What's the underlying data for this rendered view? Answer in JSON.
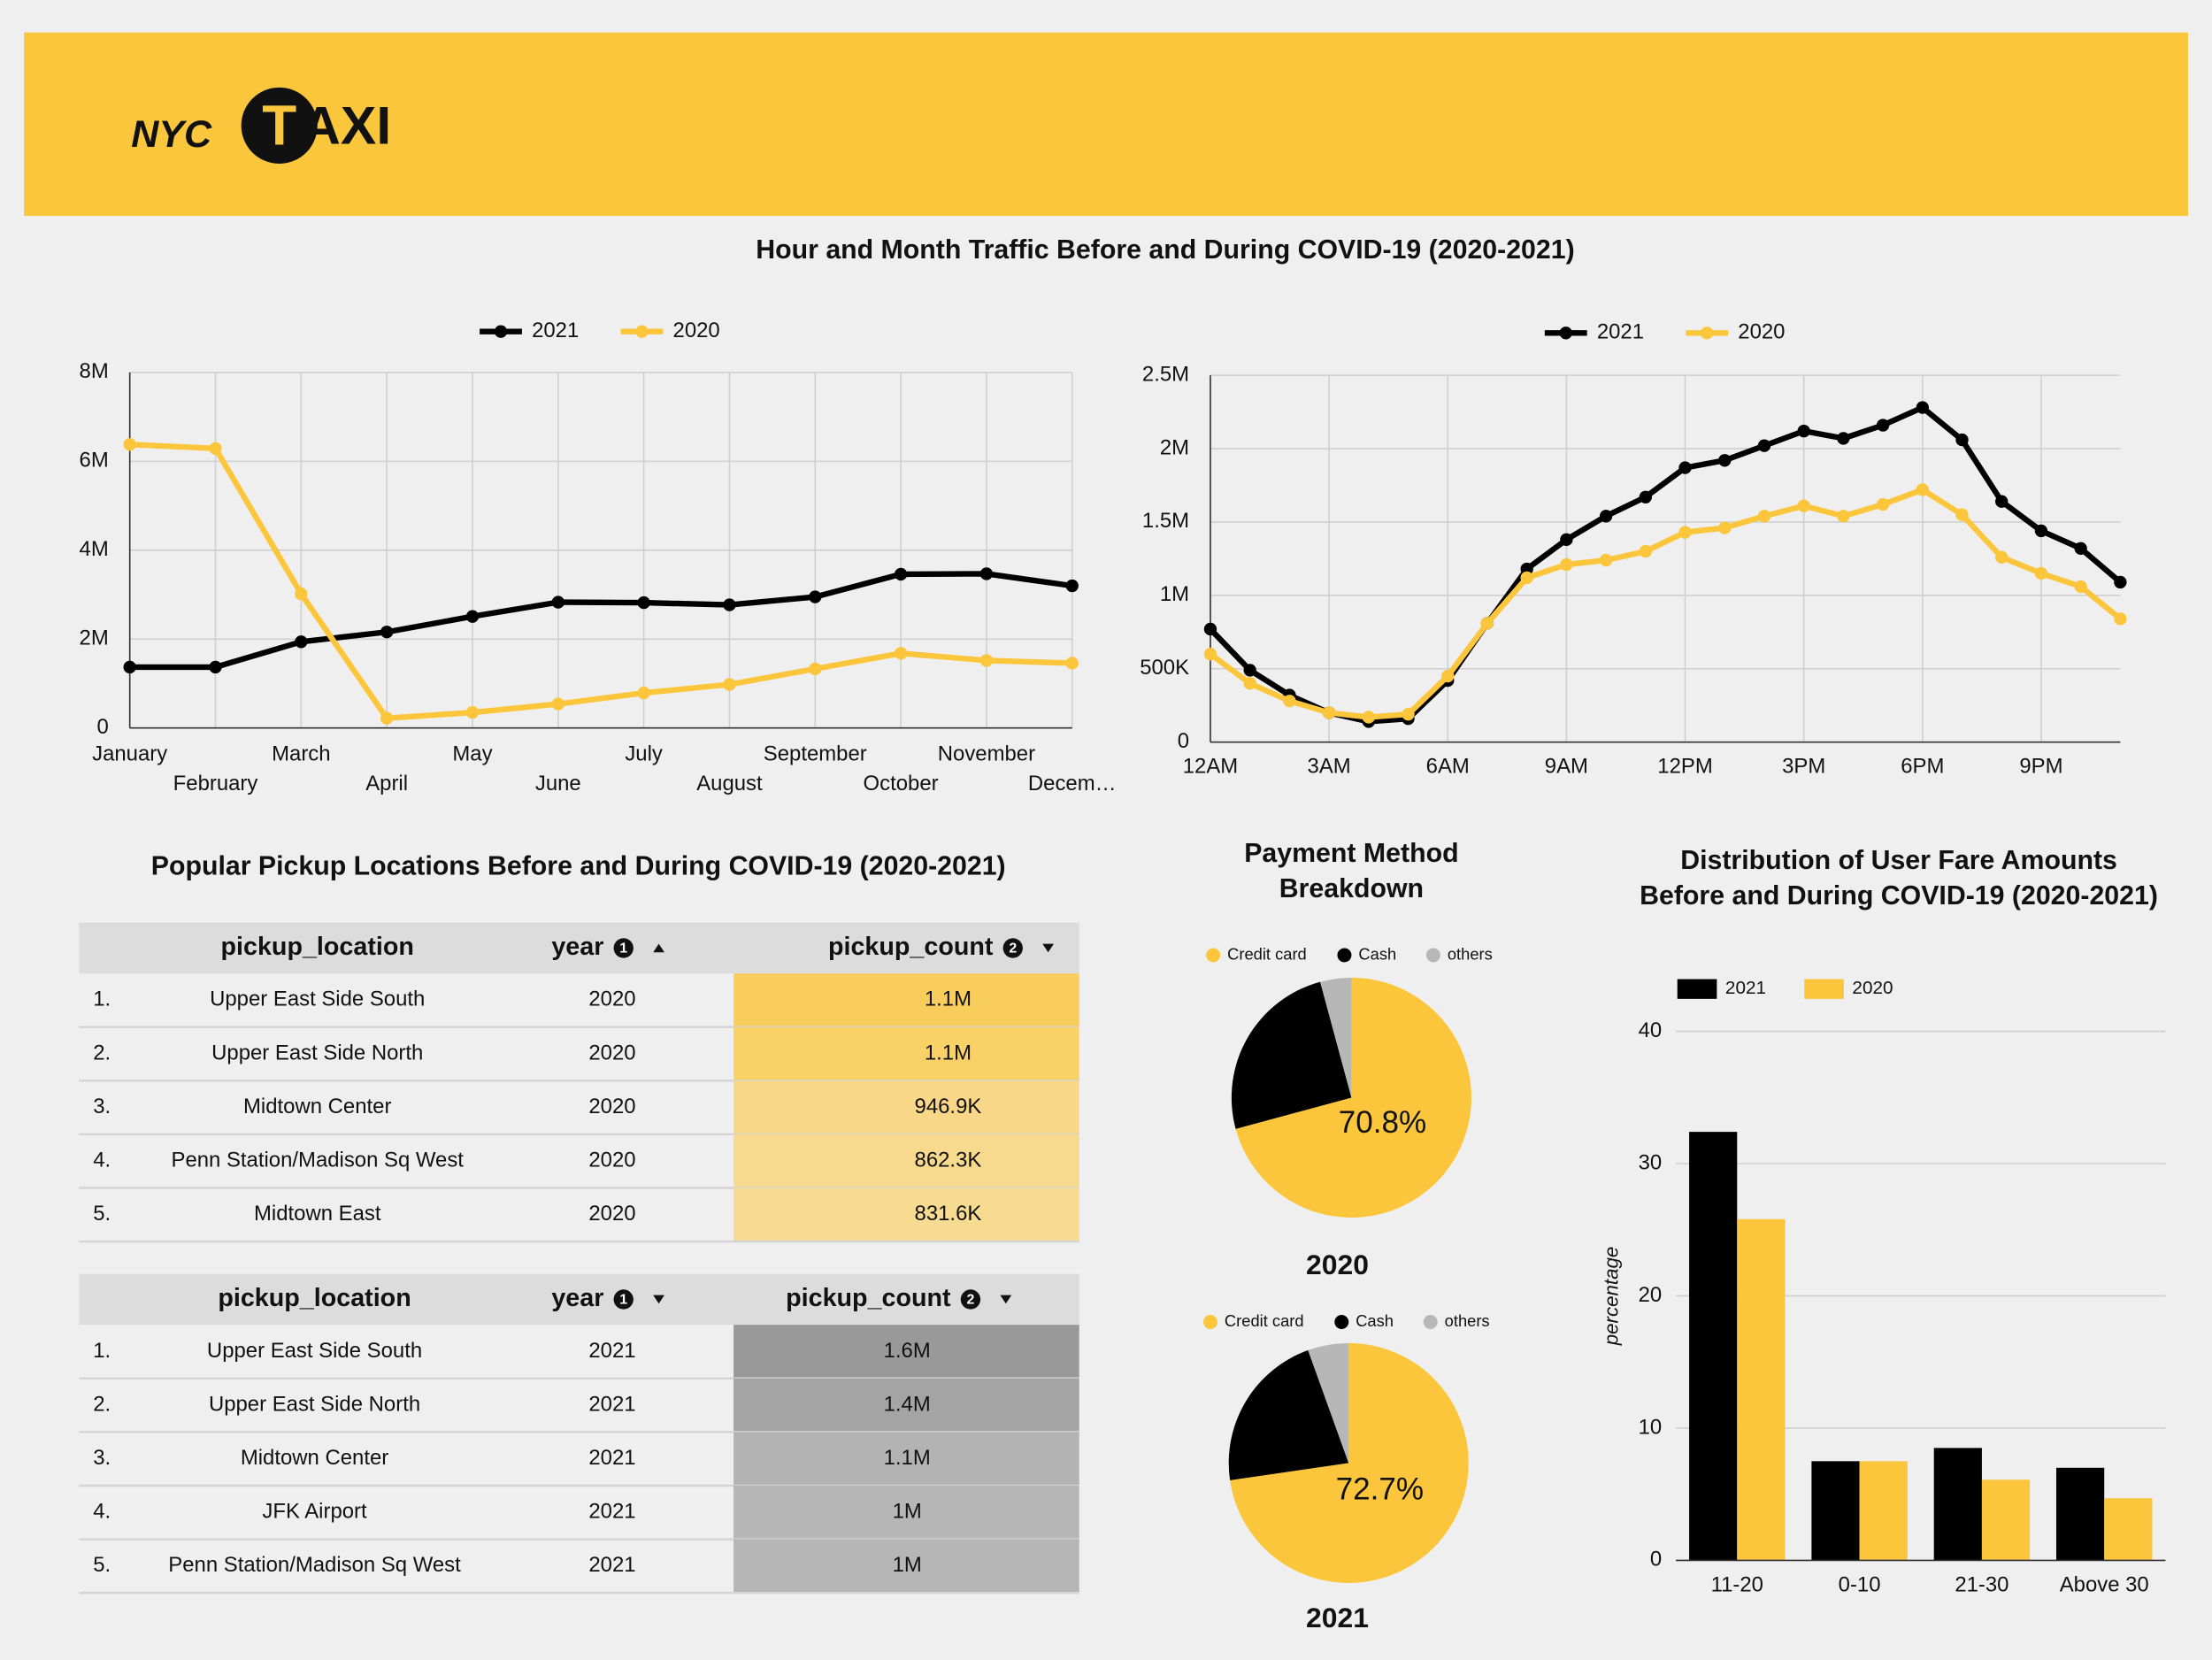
{
  "header": {
    "logo": [
      "NYC",
      "T",
      "AXI"
    ]
  },
  "title": "Hour and Month Traffic Before and During COVID-19 (2020-2021)",
  "payment_title": "Payment Method Breakdown",
  "tables_title": "Popular Pickup Locations Before and During COVID-19 (2020-2021)",
  "chart_data": [
    {
      "type": "line",
      "categories": [
        "January",
        "February",
        "March",
        "April",
        "May",
        "June",
        "July",
        "August",
        "September",
        "October",
        "November",
        "Decem…"
      ],
      "series": [
        {
          "name": "2021",
          "color": "#000000",
          "values": [
            1370000,
            1370000,
            1940000,
            2160000,
            2510000,
            2830000,
            2820000,
            2770000,
            2950000,
            3460000,
            3470000,
            3200000
          ]
        },
        {
          "name": "2020",
          "color": "#fbc63b",
          "values": [
            6380000,
            6290000,
            3020000,
            220000,
            350000,
            540000,
            790000,
            980000,
            1330000,
            1680000,
            1520000,
            1460000
          ]
        }
      ],
      "ylim": [
        0,
        8000000
      ],
      "yticks": [
        0,
        {
          "value": 2000000,
          "label": "2M"
        },
        {
          "value": 4000000,
          "label": "4M"
        },
        {
          "value": 6000000,
          "label": "6M"
        },
        {
          "value": 8000000,
          "label": "8M"
        }
      ],
      "grid": true,
      "legend": "top"
    },
    {
      "type": "line",
      "categories": [
        "12AM",
        null,
        null,
        "3AM",
        null,
        null,
        "6AM",
        null,
        null,
        "9AM",
        null,
        null,
        "12PM",
        null,
        null,
        "3PM",
        null,
        null,
        "6PM",
        null,
        null,
        "9PM",
        null,
        null
      ],
      "series": [
        {
          "name": "2021",
          "color": "#000000",
          "values": [
            770000,
            490000,
            320000,
            200000,
            140000,
            160000,
            420000,
            810000,
            1180000,
            1380000,
            1540000,
            1670000,
            1870000,
            1920000,
            2020000,
            2120000,
            2070000,
            2160000,
            2280000,
            2060000,
            1640000,
            1440000,
            1320000,
            1090000
          ]
        },
        {
          "name": "2020",
          "color": "#fbc63b",
          "values": [
            600000,
            400000,
            280000,
            200000,
            170000,
            190000,
            450000,
            810000,
            1120000,
            1210000,
            1240000,
            1300000,
            1430000,
            1460000,
            1540000,
            1610000,
            1540000,
            1620000,
            1720000,
            1550000,
            1260000,
            1150000,
            1060000,
            840000
          ]
        }
      ],
      "ylim": [
        0,
        2500000
      ],
      "yticks": [
        0,
        {
          "value": 500000,
          "label": "500K"
        },
        {
          "value": 1000000,
          "label": "1M"
        },
        {
          "value": 1500000,
          "label": "1.5M"
        },
        {
          "value": 2000000,
          "label": "2M"
        },
        {
          "value": 2500000,
          "label": "2.5M"
        }
      ],
      "grid": true,
      "legend": "top"
    },
    {
      "type": "pie",
      "title": "2020",
      "labels": [
        "Credit card",
        "Cash",
        "others"
      ],
      "values": [
        70.8,
        25,
        4.2
      ],
      "value_labels": [
        "70.8%",
        null,
        null
      ],
      "colors": [
        "#fbc63b",
        "#000000",
        "#b7b7b7"
      ],
      "legend": "top"
    },
    {
      "type": "pie",
      "title": "2021",
      "labels": [
        "Credit card",
        "Cash",
        "others"
      ],
      "values": [
        72.7,
        21.8,
        5.5
      ],
      "value_labels": [
        "72.7%",
        null,
        null
      ],
      "colors": [
        "#fbc63b",
        "#000000",
        "#b7b7b7"
      ],
      "legend": "top"
    },
    {
      "type": "bar",
      "title": "Distribution of User Fare Amounts Before and During COVID-19 (2020-2021)",
      "y_label": "percentage",
      "categories": [
        "11-20",
        "0-10",
        "21-30",
        "Above 30"
      ],
      "series": [
        {
          "name": "2021",
          "color": "#000000",
          "values": [
            32.4,
            7.5,
            8.5,
            7.0
          ]
        },
        {
          "name": "2020",
          "color": "#fbc63b",
          "values": [
            25.8,
            7.5,
            6.1,
            4.7
          ]
        }
      ],
      "ylim": [
        0,
        40
      ],
      "yticks": [
        0,
        10,
        20,
        30,
        40
      ],
      "grid": true,
      "legend": "top"
    }
  ],
  "tables": [
    {
      "columns": [
        {
          "name": "pickup_location"
        },
        {
          "name": "year",
          "badge": "1",
          "sort": "asc"
        },
        {
          "name": "pickup_count",
          "badge": "2",
          "sort": "desc"
        }
      ],
      "rows": [
        [
          "1.",
          "Upper East Side South",
          "2020",
          "1.1M"
        ],
        [
          "2.",
          "Upper East Side North",
          "2020",
          "1.1M"
        ],
        [
          "3.",
          "Midtown Center",
          "2020",
          "946.9K"
        ],
        [
          "4.",
          "Penn Station/Madison Sq West",
          "2020",
          "862.3K"
        ],
        [
          "5.",
          "Midtown East",
          "2020",
          "831.6K"
        ]
      ],
      "count_colors": [
        "#f9cd5b",
        "#f9d166",
        "#f8d888",
        "#f7da8e",
        "#f7db91"
      ]
    },
    {
      "columns": [
        {
          "name": "pickup_location"
        },
        {
          "name": "year",
          "badge": "1",
          "sort": "desc"
        },
        {
          "name": "pickup_count",
          "badge": "2",
          "sort": "desc"
        }
      ],
      "rows": [
        [
          "1.",
          "Upper East Side South",
          "2021",
          "1.6M"
        ],
        [
          "2.",
          "Upper East Side North",
          "2021",
          "1.4M"
        ],
        [
          "3.",
          "Midtown Center",
          "2021",
          "1.1M"
        ],
        [
          "4.",
          "JFK Airport",
          "2021",
          "1M"
        ],
        [
          "5.",
          "Penn Station/Madison Sq West",
          "2021",
          "1M"
        ]
      ],
      "count_colors": [
        "#999999",
        "#a4a4a4",
        "#b3b3b3",
        "#b6b6b6",
        "#b6b6b6"
      ]
    }
  ]
}
